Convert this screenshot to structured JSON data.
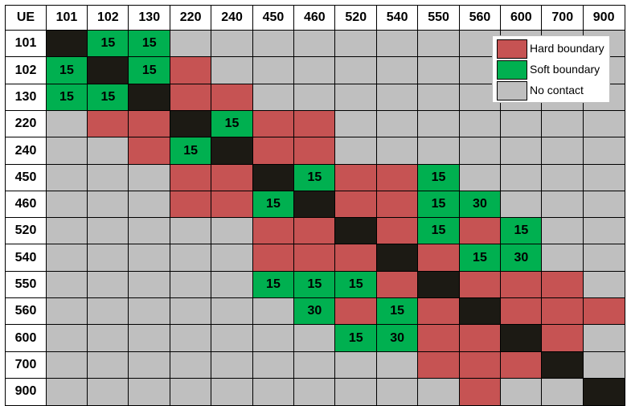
{
  "chart_data": {
    "type": "heatmap",
    "corner_label": "UE",
    "categories": [
      "101",
      "102",
      "130",
      "220",
      "240",
      "450",
      "460",
      "520",
      "540",
      "550",
      "560",
      "600",
      "700",
      "900"
    ],
    "colors": {
      "H": "#c65353",
      "S": "#00b050",
      "N": "#bfbfbf",
      "D": "#1c1a14"
    },
    "legend": [
      {
        "key": "H",
        "label": "Hard boundary"
      },
      {
        "key": "S",
        "label": "Soft boundary"
      },
      {
        "key": "N",
        "label": "No contact"
      }
    ],
    "matrix": [
      [
        "D",
        "S",
        "S",
        "N",
        "N",
        "N",
        "N",
        "N",
        "N",
        "N",
        "N",
        "N",
        "N",
        "N"
      ],
      [
        "S",
        "D",
        "S",
        "H",
        "N",
        "N",
        "N",
        "N",
        "N",
        "N",
        "N",
        "N",
        "N",
        "N"
      ],
      [
        "S",
        "S",
        "D",
        "H",
        "H",
        "N",
        "N",
        "N",
        "N",
        "N",
        "N",
        "N",
        "N",
        "N"
      ],
      [
        "N",
        "H",
        "H",
        "D",
        "S",
        "H",
        "H",
        "N",
        "N",
        "N",
        "N",
        "N",
        "N",
        "N"
      ],
      [
        "N",
        "N",
        "H",
        "S",
        "D",
        "H",
        "H",
        "N",
        "N",
        "N",
        "N",
        "N",
        "N",
        "N"
      ],
      [
        "N",
        "N",
        "N",
        "H",
        "H",
        "D",
        "S",
        "H",
        "H",
        "S",
        "N",
        "N",
        "N",
        "N"
      ],
      [
        "N",
        "N",
        "N",
        "H",
        "H",
        "S",
        "D",
        "H",
        "H",
        "S",
        "S",
        "N",
        "N",
        "N"
      ],
      [
        "N",
        "N",
        "N",
        "N",
        "N",
        "H",
        "H",
        "D",
        "H",
        "S",
        "H",
        "S",
        "N",
        "N"
      ],
      [
        "N",
        "N",
        "N",
        "N",
        "N",
        "H",
        "H",
        "H",
        "D",
        "H",
        "S",
        "S",
        "N",
        "N"
      ],
      [
        "N",
        "N",
        "N",
        "N",
        "N",
        "S",
        "S",
        "S",
        "H",
        "D",
        "H",
        "H",
        "H",
        "N"
      ],
      [
        "N",
        "N",
        "N",
        "N",
        "N",
        "N",
        "S",
        "H",
        "S",
        "H",
        "D",
        "H",
        "H",
        "H"
      ],
      [
        "N",
        "N",
        "N",
        "N",
        "N",
        "N",
        "N",
        "S",
        "S",
        "H",
        "H",
        "D",
        "H",
        "N"
      ],
      [
        "N",
        "N",
        "N",
        "N",
        "N",
        "N",
        "N",
        "N",
        "N",
        "H",
        "H",
        "H",
        "D",
        "N"
      ],
      [
        "N",
        "N",
        "N",
        "N",
        "N",
        "N",
        "N",
        "N",
        "N",
        "N",
        "H",
        "N",
        "N",
        "D"
      ]
    ],
    "values": [
      [
        "",
        "15",
        "15",
        "",
        "",
        "",
        "",
        "",
        "",
        "",
        "",
        "",
        "",
        ""
      ],
      [
        "15",
        "",
        "15",
        "",
        "",
        "",
        "",
        "",
        "",
        "",
        "",
        "",
        "",
        ""
      ],
      [
        "15",
        "15",
        "",
        "",
        "",
        "",
        "",
        "",
        "",
        "",
        "",
        "",
        "",
        ""
      ],
      [
        "",
        "",
        "",
        "",
        "15",
        "",
        "",
        "",
        "",
        "",
        "",
        "",
        "",
        ""
      ],
      [
        "",
        "",
        "",
        "15",
        "",
        "",
        "",
        "",
        "",
        "",
        "",
        "",
        "",
        ""
      ],
      [
        "",
        "",
        "",
        "",
        "",
        "",
        "15",
        "",
        "",
        "15",
        "",
        "",
        "",
        ""
      ],
      [
        "",
        "",
        "",
        "",
        "",
        "15",
        "",
        "",
        "",
        "15",
        "30",
        "",
        "",
        ""
      ],
      [
        "",
        "",
        "",
        "",
        "",
        "",
        "",
        "",
        "",
        "15",
        "",
        "15",
        "",
        ""
      ],
      [
        "",
        "",
        "",
        "",
        "",
        "",
        "",
        "",
        "",
        "",
        "15",
        "30",
        "",
        ""
      ],
      [
        "",
        "",
        "",
        "",
        "",
        "15",
        "15",
        "15",
        "",
        "",
        "",
        "",
        "",
        ""
      ],
      [
        "",
        "",
        "",
        "",
        "",
        "",
        "30",
        "",
        "15",
        "",
        "",
        "",
        "",
        ""
      ],
      [
        "",
        "",
        "",
        "",
        "",
        "",
        "",
        "15",
        "30",
        "",
        "",
        "",
        "",
        ""
      ],
      [
        "",
        "",
        "",
        "",
        "",
        "",
        "",
        "",
        "",
        "",
        "",
        "",
        "",
        ""
      ],
      [
        "",
        "",
        "",
        "",
        "",
        "",
        "",
        "",
        "",
        "",
        "",
        "",
        "",
        ""
      ]
    ]
  }
}
